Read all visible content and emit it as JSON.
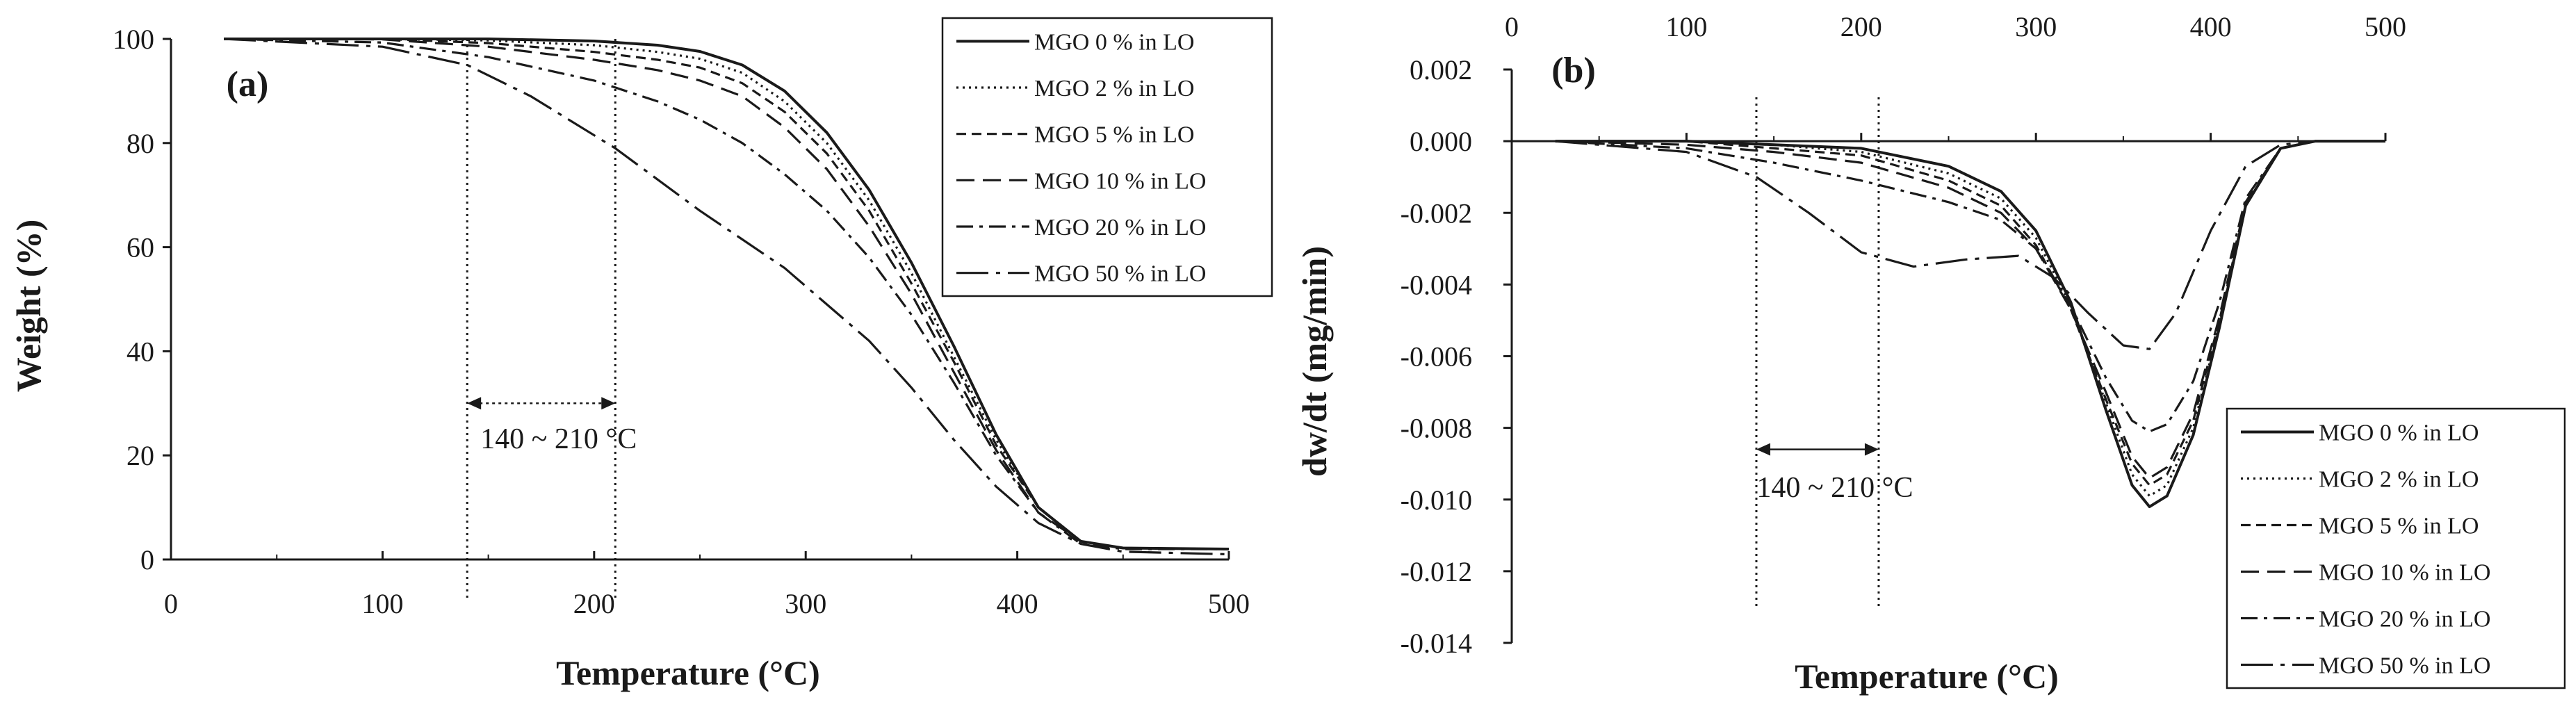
{
  "chart_data": [
    {
      "panel": "a",
      "type": "line",
      "panel_label": "(a)",
      "xlabel": "Temperature (°C)",
      "ylabel": "Weight (%)",
      "xlim": [
        0,
        500
      ],
      "ylim": [
        0,
        100
      ],
      "xticks": [
        0,
        100,
        200,
        300,
        400,
        500
      ],
      "yticks": [
        0,
        20,
        40,
        60,
        80,
        100
      ],
      "grid": false,
      "legend_position": "top-right",
      "annotation": {
        "text": "140 ~ 210 °C",
        "range": [
          140,
          210
        ],
        "arrow_y": 30
      },
      "series": [
        {
          "name": "MGO 0 % in LO",
          "dash": "solid",
          "x": [
            25,
            100,
            150,
            200,
            230,
            250,
            270,
            290,
            310,
            330,
            350,
            370,
            390,
            410,
            430,
            450,
            500
          ],
          "y": [
            100,
            100,
            100,
            99.6,
            98.8,
            97.6,
            95,
            90,
            82,
            71,
            57,
            41,
            24,
            10,
            3.5,
            2.2,
            2
          ]
        },
        {
          "name": "MGO 2 % in LO",
          "dash": "dot",
          "x": [
            25,
            100,
            150,
            200,
            230,
            250,
            270,
            290,
            310,
            330,
            350,
            370,
            390,
            410,
            430,
            450,
            500
          ],
          "y": [
            100,
            100,
            99.7,
            98.8,
            97.5,
            96.2,
            93.5,
            88,
            80,
            69,
            55,
            39,
            23,
            10,
            3.5,
            2.2,
            2
          ]
        },
        {
          "name": "MGO 5 % in LO",
          "dash": "short",
          "x": [
            25,
            100,
            150,
            200,
            230,
            250,
            270,
            290,
            310,
            330,
            350,
            370,
            390,
            410,
            430,
            450,
            500
          ],
          "y": [
            100,
            100,
            99.2,
            97.5,
            96,
            94.5,
            91.5,
            86,
            78,
            67,
            53,
            38,
            22,
            10,
            3.5,
            2.2,
            2
          ]
        },
        {
          "name": "MGO 10 % in LO",
          "dash": "long",
          "x": [
            25,
            100,
            150,
            200,
            230,
            250,
            270,
            290,
            310,
            330,
            350,
            370,
            390,
            410,
            430,
            450,
            500
          ],
          "y": [
            100,
            99.9,
            98.5,
            96,
            94,
            92,
            89,
            83,
            75,
            64,
            51,
            36,
            21,
            9,
            3.5,
            2.2,
            2
          ]
        },
        {
          "name": "MGO 20 % in LO",
          "dash": "dashdot",
          "x": [
            25,
            100,
            150,
            200,
            230,
            250,
            270,
            290,
            310,
            330,
            350,
            370,
            390,
            410,
            430,
            450,
            500
          ],
          "y": [
            100,
            99.3,
            96.5,
            92,
            88,
            84.5,
            80,
            74,
            67,
            58,
            47,
            34,
            20,
            9,
            3,
            2,
            2
          ]
        },
        {
          "name": "MGO 50 % in LO",
          "dash": "longdashdot",
          "x": [
            25,
            100,
            140,
            170,
            210,
            250,
            290,
            330,
            350,
            370,
            390,
            410,
            430,
            450,
            500
          ],
          "y": [
            100,
            98.5,
            95,
            89,
            79,
            67,
            56,
            42,
            33,
            23,
            14,
            7,
            3,
            1.5,
            1
          ]
        }
      ]
    },
    {
      "panel": "b",
      "type": "line",
      "panel_label": "(b)",
      "xlabel": "Temperature (°C)",
      "ylabel": "dw/dt  (mg/min)",
      "xlim": [
        0,
        500
      ],
      "ylim": [
        -0.014,
        0.002
      ],
      "xticks": [
        0,
        100,
        200,
        300,
        400,
        500
      ],
      "yticks": [
        0.002,
        0,
        -0.002,
        -0.004,
        -0.006,
        -0.008,
        -0.01,
        -0.012,
        -0.014
      ],
      "ytick_labels": [
        "0.002",
        "0.000",
        "-0.002",
        "-0.004",
        "-0.006",
        "-0.008",
        "-0.010",
        "-0.012",
        "-0.014"
      ],
      "xaxis_position": "top",
      "grid": false,
      "legend_position": "bottom-right",
      "annotation": {
        "text": "140 ~ 210 °C",
        "range": [
          140,
          210
        ],
        "arrow_y": -0.0086
      },
      "series": [
        {
          "name": "MGO 0 % in LO",
          "dash": "solid",
          "x": [
            25,
            100,
            150,
            200,
            250,
            280,
            300,
            320,
            340,
            355,
            365,
            375,
            390,
            405,
            420,
            440,
            460,
            500
          ],
          "y": [
            0,
            0,
            -0.0001,
            -0.0002,
            -0.0007,
            -0.0014,
            -0.0025,
            -0.0045,
            -0.0075,
            -0.0096,
            -0.0102,
            -0.0099,
            -0.0082,
            -0.0052,
            -0.0018,
            -0.0002,
            0,
            0
          ]
        },
        {
          "name": "MGO 2 % in LO",
          "dash": "dot",
          "x": [
            25,
            100,
            150,
            200,
            250,
            280,
            300,
            320,
            340,
            355,
            365,
            375,
            390,
            405,
            420,
            440,
            460,
            500
          ],
          "y": [
            0,
            0,
            -0.0001,
            -0.0003,
            -0.0009,
            -0.0016,
            -0.0027,
            -0.0046,
            -0.0073,
            -0.0093,
            -0.0099,
            -0.0096,
            -0.008,
            -0.0051,
            -0.0018,
            -0.0002,
            0,
            0
          ]
        },
        {
          "name": "MGO 5 % in LO",
          "dash": "short",
          "x": [
            25,
            100,
            150,
            200,
            250,
            280,
            300,
            320,
            340,
            355,
            365,
            375,
            390,
            405,
            420,
            440,
            460,
            500
          ],
          "y": [
            0,
            0,
            -0.0002,
            -0.0004,
            -0.0011,
            -0.0018,
            -0.0029,
            -0.0047,
            -0.0072,
            -0.009,
            -0.0096,
            -0.0093,
            -0.0078,
            -0.005,
            -0.0018,
            -0.0002,
            0,
            0
          ]
        },
        {
          "name": "MGO 10 % in LO",
          "dash": "long",
          "x": [
            25,
            100,
            150,
            200,
            250,
            280,
            300,
            320,
            340,
            355,
            365,
            375,
            390,
            405,
            420,
            440,
            460,
            500
          ],
          "y": [
            0,
            -0.0001,
            -0.0003,
            -0.0006,
            -0.0013,
            -0.002,
            -0.003,
            -0.0047,
            -0.007,
            -0.0088,
            -0.0094,
            -0.0091,
            -0.0076,
            -0.0049,
            -0.0017,
            -0.0002,
            0,
            0
          ]
        },
        {
          "name": "MGO 20 % in LO",
          "dash": "dashdot",
          "x": [
            25,
            100,
            150,
            200,
            250,
            280,
            300,
            320,
            340,
            355,
            365,
            375,
            390,
            405,
            420,
            440,
            460,
            500
          ],
          "y": [
            0,
            -0.0002,
            -0.0006,
            -0.0011,
            -0.0017,
            -0.0022,
            -0.003,
            -0.0046,
            -0.0066,
            -0.0078,
            -0.0081,
            -0.0079,
            -0.0067,
            -0.0045,
            -0.0016,
            -0.0002,
            0,
            0
          ]
        },
        {
          "name": "MGO 50 % in LO",
          "dash": "longdashdot",
          "x": [
            25,
            100,
            140,
            170,
            200,
            230,
            260,
            290,
            310,
            330,
            350,
            365,
            380,
            400,
            420,
            440,
            460,
            500
          ],
          "y": [
            0,
            -0.0003,
            -0.001,
            -0.002,
            -0.0031,
            -0.0035,
            -0.0033,
            -0.0032,
            -0.0038,
            -0.0048,
            -0.0057,
            -0.0058,
            -0.0048,
            -0.0025,
            -0.0007,
            -0.0001,
            0,
            0
          ]
        }
      ]
    }
  ]
}
